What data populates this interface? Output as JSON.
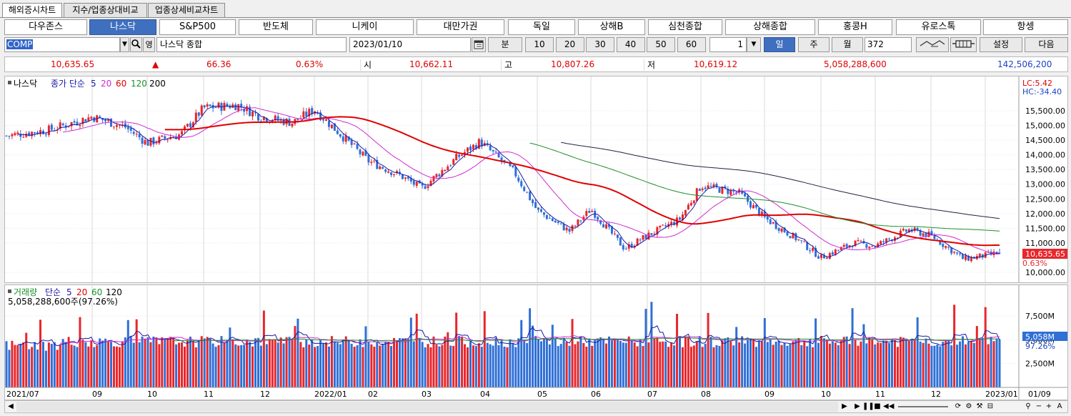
{
  "tabs": [
    "해외증시차트",
    "지수/업종상대비교",
    "업종상세비교차트"
  ],
  "markets": [
    "다우존스",
    "나스닥",
    "S&P500",
    "반도체",
    "니케이",
    "대만가권",
    "독일",
    "상해B",
    "심천종합",
    "상해종합",
    "홍콩H",
    "유로스톡",
    "항셍"
  ],
  "active_market": "나스닥",
  "controls": {
    "code": "COMP",
    "name": "나스닥 종합",
    "date": "2023/01/10",
    "minute_label": "분",
    "intervals": [
      "10",
      "20",
      "30",
      "40",
      "50",
      "60"
    ],
    "count1": "1",
    "periods": [
      "일",
      "주",
      "월"
    ],
    "active_period": "일",
    "count2": "372",
    "settings_label": "설정",
    "next_label": "다음"
  },
  "quote": {
    "price": "10,635.65",
    "change_arrow": "▲",
    "change": "66.36",
    "change_pct": "0.63%",
    "open_label": "시",
    "open": "10,662.11",
    "high_label": "고",
    "high": "10,807.26",
    "low_label": "저",
    "low": "10,619.12",
    "volume": "5,058,288,600",
    "amount": "142,506,200"
  },
  "price_chart": {
    "legend_name": "나스닥",
    "legend_rest": "종가 단순",
    "ma_periods": [
      "5",
      "20",
      "60",
      "120",
      "200"
    ],
    "lc": "LC:5.42",
    "hc": "HC:-34.40",
    "yticks": [
      "15,500.00",
      "15,000.00",
      "14,500.00",
      "14,000.00",
      "13,500.00",
      "13,000.00",
      "12,500.00",
      "12,000.00",
      "11,500.00",
      "11,000.00",
      "10,000.00"
    ],
    "current_price": "10,635.65",
    "current_pct": "0.63%"
  },
  "volume_chart": {
    "legend_name": "거래량",
    "legend_rest": "단순",
    "ma_periods": [
      "5",
      "20",
      "60",
      "120"
    ],
    "sub": "5,058,288,600주(97.26%)",
    "yticks": [
      "7,500M",
      "5,000M",
      "2,500M"
    ],
    "current": "5,058M",
    "current_pct": "97.26%"
  },
  "xaxis": [
    "2021/07",
    "09",
    "10",
    "11",
    "12",
    "2022/01",
    "02",
    "03",
    "04",
    "05",
    "06",
    "07",
    "08",
    "09",
    "10",
    "11",
    "12",
    "2023/01",
    "01/09"
  ],
  "colors": {
    "up": "#e8262b",
    "down": "#2f6fd6",
    "ma5": "#1a1aa8",
    "ma20": "#d02ad0",
    "ma60": "#e00000",
    "ma120": "#1b8f2c",
    "ma200": "#222244"
  },
  "chart_data": {
    "type": "candlestick",
    "anchors": {
      "price_close": [
        [
          "2021/07",
          14650
        ],
        [
          "2021/08",
          14850
        ],
        [
          "2021/09",
          15300
        ],
        [
          "2021/09",
          14950
        ],
        [
          "2021/10",
          14400
        ],
        [
          "2021/10",
          14700
        ],
        [
          "2021/11",
          15600
        ],
        [
          "2021/11",
          15700
        ],
        [
          "2021/12",
          15300
        ],
        [
          "2021/12",
          15100
        ],
        [
          "2022/01",
          15550
        ],
        [
          "2022/01",
          14500
        ],
        [
          "2022/02",
          13800
        ],
        [
          "2022/02",
          13300
        ],
        [
          "2022/03",
          12850
        ],
        [
          "2022/03",
          13900
        ],
        [
          "2022/04",
          14450
        ],
        [
          "2022/04",
          13400
        ],
        [
          "2022/05",
          12100
        ],
        [
          "2022/05",
          11400
        ],
        [
          "2022/06",
          12150
        ],
        [
          "2022/06",
          10800
        ],
        [
          "2022/07",
          11250
        ],
        [
          "2022/07",
          11800
        ],
        [
          "2022/08",
          12950
        ],
        [
          "2022/08",
          12700
        ],
        [
          "2022/09",
          11850
        ],
        [
          "2022/09",
          11100
        ],
        [
          "2022/10",
          10500
        ],
        [
          "2022/10",
          11000
        ],
        [
          "2022/11",
          10900
        ],
        [
          "2022/11",
          11450
        ],
        [
          "2022/12",
          11250
        ],
        [
          "2022/12",
          10450
        ],
        [
          "2023/01",
          10635.65
        ]
      ],
      "volume_millions": [
        5058
      ]
    }
  }
}
